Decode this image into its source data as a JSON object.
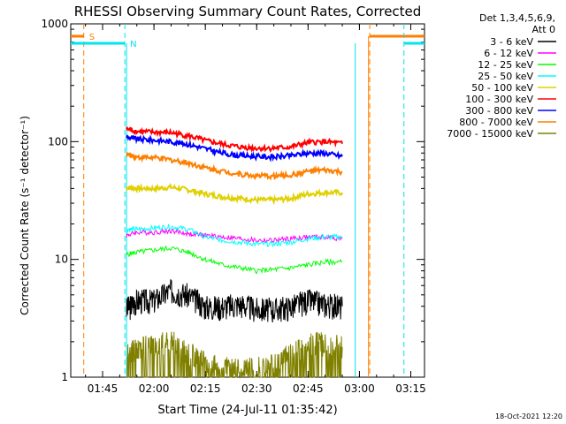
{
  "colors": {
    "background": "#ffffff",
    "axis": "#000000"
  },
  "chart_data": {
    "type": "line",
    "title": "RHESSI Observing Summary Count Rates, Corrected",
    "xlabel": "Start Time (24-Jul-11 01:35:42)",
    "ylabel": "Corrected Count Rate (s⁻¹ detector⁻¹)",
    "y_scale": "log",
    "ylim": [
      1,
      1000
    ],
    "y_ticks": [
      1,
      10,
      100,
      1000
    ],
    "y_tick_labels": [
      "1",
      "10",
      "100",
      "1000"
    ],
    "x_ticks": [
      "01:45",
      "02:00",
      "02:15",
      "02:30",
      "02:45",
      "03:00",
      "03:15"
    ],
    "legend_title": [
      "Det 1,3,4,5,6,9,",
      "Att 0"
    ],
    "legend_position": "right",
    "timestamp": "18-Oct-2021 12:20",
    "markers": [
      {
        "label": "S",
        "color": "#ff7f00",
        "style": "dashed",
        "times": [
          "01:39:30",
          "03:03:00"
        ]
      },
      {
        "label": "N",
        "color": "#00e5ee",
        "style": "dashed",
        "times": [
          "01:51:30",
          "03:13:00"
        ]
      }
    ],
    "series": [
      {
        "name": "3 - 6 keV",
        "color": "#000000",
        "x": [
          "01:52",
          "01:55",
          "02:00",
          "02:05",
          "02:10",
          "02:15",
          "02:20",
          "02:25",
          "02:30",
          "02:35",
          "02:40",
          "02:45",
          "02:50",
          "02:55"
        ],
        "values": [
          3.8,
          4.5,
          4.5,
          5.5,
          5.0,
          4.0,
          4.0,
          4.2,
          3.8,
          3.8,
          4.0,
          4.5,
          4.2,
          4.0
        ]
      },
      {
        "name": "6 - 12 keV",
        "color": "#ff00ff",
        "x": [
          "01:52",
          "01:55",
          "02:00",
          "02:05",
          "02:10",
          "02:15",
          "02:20",
          "02:25",
          "02:30",
          "02:35",
          "02:40",
          "02:45",
          "02:50",
          "02:55"
        ],
        "values": [
          16,
          17,
          17,
          17.5,
          16.5,
          16,
          15.5,
          15,
          14.5,
          14.5,
          15,
          15.5,
          15.5,
          15
        ]
      },
      {
        "name": "12 - 25 keV",
        "color": "#00ff00",
        "x": [
          "01:52",
          "01:55",
          "02:00",
          "02:05",
          "02:10",
          "02:15",
          "02:20",
          "02:25",
          "02:30",
          "02:35",
          "02:40",
          "02:45",
          "02:50",
          "02:55"
        ],
        "values": [
          11,
          11.5,
          12,
          12.5,
          11.5,
          10,
          9,
          8.5,
          8,
          8.2,
          8.5,
          9,
          9.5,
          9.5
        ]
      },
      {
        "name": "25 - 50 keV",
        "color": "#00ffff",
        "x": [
          "01:52",
          "01:55",
          "02:00",
          "02:05",
          "02:10",
          "02:15",
          "02:20",
          "02:25",
          "02:30",
          "02:35",
          "02:40",
          "02:45",
          "02:50",
          "02:55"
        ],
        "values": [
          18,
          18,
          18.5,
          19,
          18,
          15.5,
          14.5,
          14,
          13.5,
          13.5,
          14,
          15,
          15.5,
          15.5
        ]
      },
      {
        "name": "50 - 100 keV",
        "color": "#e0d000",
        "x": [
          "01:52",
          "01:55",
          "02:00",
          "02:05",
          "02:10",
          "02:15",
          "02:20",
          "02:25",
          "02:30",
          "02:35",
          "02:40",
          "02:45",
          "02:50",
          "02:55"
        ],
        "values": [
          41,
          40,
          40,
          41,
          39,
          36,
          34,
          33,
          32,
          32,
          33,
          36,
          37,
          37
        ]
      },
      {
        "name": "100 - 300 keV",
        "color": "#ff0000",
        "x": [
          "01:52",
          "01:55",
          "02:00",
          "02:05",
          "02:10",
          "02:15",
          "02:20",
          "02:25",
          "02:30",
          "02:35",
          "02:40",
          "02:45",
          "02:50",
          "02:55"
        ],
        "values": [
          128,
          122,
          120,
          119,
          112,
          102,
          95,
          90,
          88,
          88,
          90,
          98,
          100,
          96
        ]
      },
      {
        "name": "300 - 800 keV",
        "color": "#0000ff",
        "x": [
          "01:52",
          "01:55",
          "02:00",
          "02:05",
          "02:10",
          "02:15",
          "02:20",
          "02:25",
          "02:30",
          "02:35",
          "02:40",
          "02:45",
          "02:50",
          "02:55"
        ],
        "values": [
          110,
          105,
          103,
          100,
          95,
          87,
          80,
          76,
          75,
          74,
          76,
          80,
          80,
          75
        ]
      },
      {
        "name": "800 - 7000 keV",
        "color": "#ff7f00",
        "x": [
          "01:52",
          "01:55",
          "02:00",
          "02:05",
          "02:10",
          "02:15",
          "02:20",
          "02:25",
          "02:30",
          "02:35",
          "02:40",
          "02:45",
          "02:50",
          "02:55"
        ],
        "values": [
          78,
          74,
          73,
          70,
          66,
          60,
          56,
          53,
          51,
          51,
          52,
          56,
          57,
          55
        ]
      },
      {
        "name": "7000 - 15000 keV",
        "color": "#808000",
        "x": [
          "01:52",
          "01:55",
          "02:00",
          "02:05",
          "02:10",
          "02:15",
          "02:20",
          "02:25",
          "02:30",
          "02:35",
          "02:40",
          "02:45",
          "02:50",
          "02:55"
        ],
        "values": [
          1.6,
          1.8,
          1.9,
          2.0,
          1.7,
          1.3,
          1.2,
          1.2,
          1.2,
          1.3,
          1.6,
          1.9,
          2.0,
          1.8
        ]
      }
    ]
  }
}
